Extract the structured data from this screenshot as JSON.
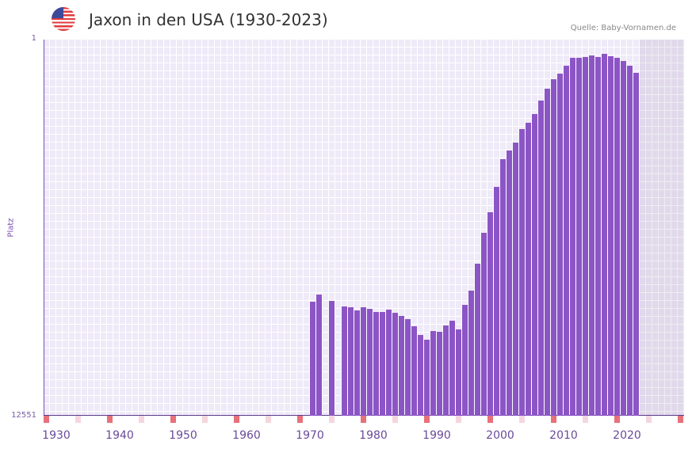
{
  "header": {
    "title": "Jaxon in den USA (1930-2023)",
    "flag_icon": "us-flag-icon",
    "source": "Quelle: Baby-Vornamen.de"
  },
  "colors": {
    "bar": "#8c55c6",
    "marker_major": "#e8707a",
    "marker_minor": "#f5d6df"
  },
  "chart_data": {
    "type": "bar",
    "title": "Jaxon in den USA (1930-2023)",
    "xlabel": "",
    "ylabel": "Platz",
    "y_ticks": [
      "1",
      "12551"
    ],
    "ylim": [
      1,
      12551
    ],
    "y_inverted": true,
    "x_ticks": [
      "1930",
      "1940",
      "1950",
      "1960",
      "1970",
      "1980",
      "1990",
      "2000",
      "2010",
      "2020"
    ],
    "xlim": [
      1929,
      2029
    ],
    "years": [
      1971,
      1972,
      1973,
      1974,
      1975,
      1976,
      1977,
      1978,
      1979,
      1980,
      1981,
      1982,
      1983,
      1984,
      1985,
      1986,
      1987,
      1988,
      1989,
      1990,
      1991,
      1992,
      1993,
      1994,
      1995,
      1996,
      1997,
      1998,
      1999,
      2000,
      2001,
      2002,
      2003,
      2004,
      2005,
      2006,
      2007,
      2008,
      2009,
      2010,
      2011,
      2012,
      2013,
      2014,
      2015,
      2016,
      2017,
      2018,
      2019,
      2020,
      2021,
      2022
    ],
    "ranks": [
      3520,
      3225,
      null,
      3490,
      null,
      3740,
      3775,
      3930,
      3775,
      3850,
      4005,
      4005,
      3890,
      4045,
      4200,
      4370,
      4750,
      5260,
      5560,
      5020,
      5070,
      4700,
      4450,
      4930,
      3670,
      3065,
      2150,
      1380,
      1003,
      657,
      391,
      327,
      276,
      203,
      174,
      139,
      95,
      65,
      46,
      37,
      26,
      17,
      17,
      16,
      14,
      16,
      13,
      15,
      17,
      20,
      26,
      36
    ]
  }
}
